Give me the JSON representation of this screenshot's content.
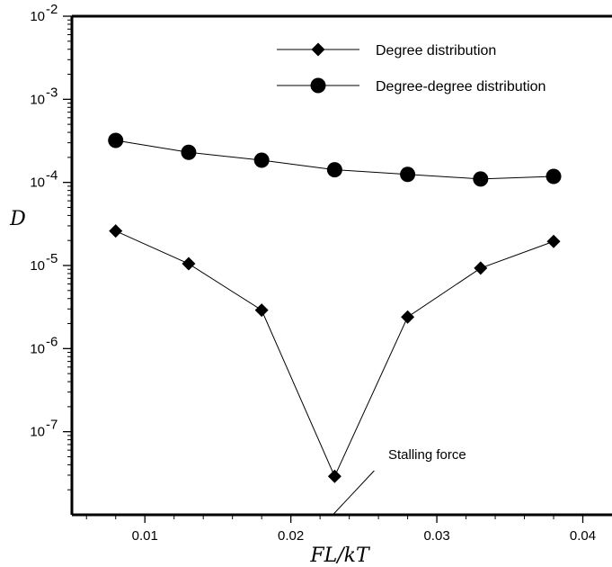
{
  "chart_data": {
    "type": "line",
    "title": "",
    "xlabel": "FL/kT",
    "ylabel": "D",
    "xlim": [
      0.005,
      0.042
    ],
    "ylim": [
      1e-08,
      0.01
    ],
    "yscale": "log",
    "grid": false,
    "legend_position": "top-right",
    "x_ticks": [
      0.01,
      0.02,
      0.03,
      0.04
    ],
    "x_tick_labels": [
      "0.01",
      "0.02",
      "0.03",
      "0.04"
    ],
    "y_ticks": [
      1e-07,
      1e-06,
      1e-05,
      0.0001,
      0.001,
      0.01
    ],
    "y_tick_base": "10",
    "y_tick_exponents": [
      "-7",
      "-6",
      "-5",
      "-4",
      "-3",
      "-2"
    ],
    "series": [
      {
        "name": "Degree distribution",
        "marker": "diamond",
        "x": [
          0.008,
          0.013,
          0.018,
          0.023,
          0.028,
          0.033,
          0.038
        ],
        "y": [
          2.6e-05,
          1.05e-05,
          2.9e-06,
          2.9e-08,
          2.4e-06,
          9.3e-06,
          1.95e-05
        ]
      },
      {
        "name": "Degree-degree distribution",
        "marker": "circle",
        "x": [
          0.008,
          0.013,
          0.018,
          0.023,
          0.028,
          0.033,
          0.038
        ],
        "y": [
          0.00032,
          0.00023,
          0.000185,
          0.000142,
          0.000125,
          0.00011,
          0.000118
        ]
      }
    ],
    "annotations": [
      {
        "text": "Stalling force",
        "x": 0.023,
        "y": 1e-08
      }
    ]
  },
  "colors": {
    "line": "#000000",
    "marker": "#000000",
    "background": "#ffffff"
  }
}
